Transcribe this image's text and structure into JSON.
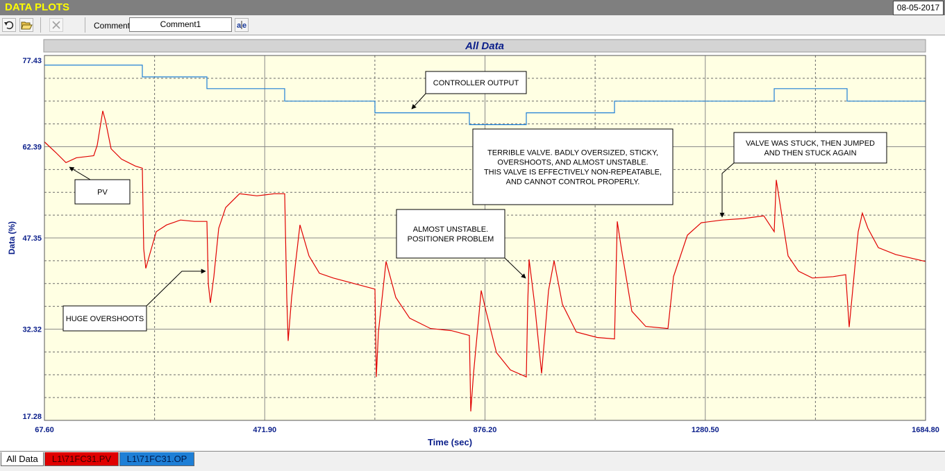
{
  "header": {
    "title": "DATA PLOTS",
    "date": "08-05-2017"
  },
  "toolbar": {
    "comment_label": "Comment",
    "comment_value": "Comment1"
  },
  "tabs": {
    "selected": "All Data"
  },
  "chart_data": {
    "type": "line",
    "title": "All Data",
    "xlabel": "Time (sec)",
    "ylabel": "Data (%)",
    "xlim": [
      67.6,
      1684.8
    ],
    "ylim": [
      17.28,
      77.43
    ],
    "xticks": [
      {
        "value": 67.6,
        "label": "67.60"
      },
      {
        "value": 471.9,
        "label": "471.90"
      },
      {
        "value": 876.2,
        "label": "876.20"
      },
      {
        "value": 1280.5,
        "label": "1280.50"
      },
      {
        "value": 1684.8,
        "label": "1684.80"
      }
    ],
    "yticks": [
      17.28,
      32.32,
      47.35,
      62.39,
      77.43
    ],
    "grid": true,
    "series": [
      {
        "name": "L1\\71FC31.PV",
        "color": "#e00000",
        "x": [
          67.6,
          88.0,
          107.1,
          126.2,
          158.1,
          164.5,
          174.7,
          179.7,
          189.9,
          209.1,
          234.5,
          247.3,
          249.8,
          253.7,
          260.0,
          272.8,
          291.9,
          317.4,
          342.9,
          365.8,
          368.4,
          372.2,
          378.6,
          387.5,
          400.2,
          425.7,
          457.6,
          489.4,
          508.5,
          512.4,
          514.9,
          521.3,
          536.6,
          553.1,
          572.3,
          597.8,
          636.0,
          674.2,
          676.8,
          680.6,
          694.6,
          712.4,
          737.9,
          776.2,
          814.4,
          847.5,
          850.1,
          855.2,
          869.2,
          878.1,
          897.2,
          922.7,
          952.0,
          954.6,
          957.1,
          967.3,
          980.1,
          992.8,
          1003.0,
          1018.3,
          1043.8,
          1082.0,
          1113.9,
          1119.0,
          1126.6,
          1145.7,
          1171.2,
          1212.0,
          1222.2,
          1247.7,
          1273.2,
          1311.4,
          1349.6,
          1387.9,
          1407.0,
          1410.8,
          1419.7,
          1432.5,
          1451.6,
          1477.1,
          1515.3,
          1538.3,
          1544.6,
          1551.0,
          1561.2,
          1568.8,
          1579.0,
          1598.1,
          1630.0,
          1684.8
        ],
        "values": [
          63.19,
          61.48,
          59.77,
          60.57,
          60.91,
          62.62,
          68.31,
          66.61,
          62.05,
          60.34,
          59.2,
          58.86,
          45.53,
          42.34,
          44.39,
          48.38,
          49.51,
          50.31,
          50.08,
          50.08,
          39.83,
          36.64,
          40.97,
          48.94,
          52.36,
          54.64,
          54.3,
          54.64,
          54.64,
          37.55,
          30.37,
          37.55,
          49.51,
          44.39,
          41.54,
          40.74,
          39.83,
          38.92,
          24.45,
          31.85,
          43.48,
          37.55,
          34.13,
          32.42,
          32.08,
          31.28,
          18.75,
          25.02,
          38.69,
          35.27,
          28.44,
          25.59,
          24.45,
          36.41,
          43.82,
          36.41,
          25.02,
          38.69,
          43.59,
          36.41,
          31.85,
          30.94,
          30.71,
          50.08,
          45.53,
          35.27,
          32.76,
          32.42,
          40.97,
          47.81,
          49.86,
          50.31,
          50.54,
          51.0,
          48.38,
          56.92,
          51.79,
          44.39,
          41.88,
          40.74,
          40.97,
          41.31,
          32.65,
          38.69,
          48.38,
          51.45,
          48.94,
          45.75,
          44.62,
          43.48
        ]
      },
      {
        "name": "L1\\71FC31.OP",
        "color": "#1e7fd6",
        "x": [
          67.6,
          247.3,
          247.3,
          365.8,
          365.8,
          508.5,
          508.5,
          674.2,
          674.2,
          847.5,
          847.5,
          952.0,
          952.0,
          1113.9,
          1113.9,
          1407.0,
          1407.0,
          1540.8,
          1540.8,
          1684.8
        ],
        "values": [
          75.84,
          75.84,
          73.9,
          73.9,
          71.96,
          71.96,
          69.91,
          69.91,
          67.98,
          67.98,
          66.04,
          66.04,
          67.98,
          67.98,
          69.91,
          69.91,
          71.96,
          71.96,
          69.91,
          69.91
        ]
      }
    ],
    "annotations": [
      {
        "lines": [
          "CONTROLLER OUTPUT"
        ]
      },
      {
        "lines": [
          "PV"
        ]
      },
      {
        "lines": [
          "HUGE OVERSHOOTS"
        ]
      },
      {
        "lines": [
          "ALMOST UNSTABLE.",
          "POSITIONER PROBLEM"
        ]
      },
      {
        "lines": [
          "TERRIBLE VALVE.  BADLY OVERSIZED, STICKY,",
          "OVERSHOOTS, AND ALMOST UNSTABLE.",
          "THIS VALVE IS EFFECTIVELY NON-REPEATABLE,",
          "AND CANNOT CONTROL PROPERLY."
        ]
      },
      {
        "lines": [
          "VALVE WAS STUCK, THEN JUMPED",
          "AND THEN STUCK AGAIN"
        ]
      }
    ]
  }
}
